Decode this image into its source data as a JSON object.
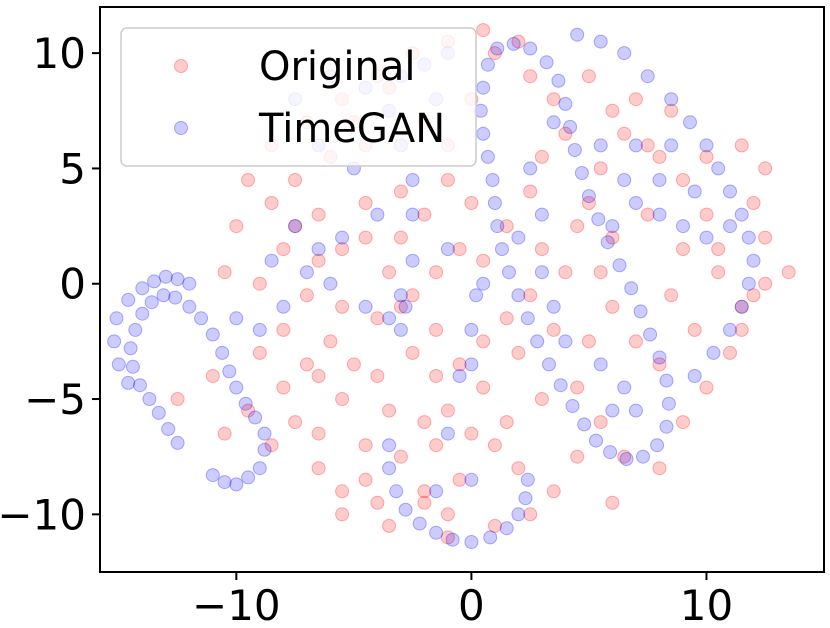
{
  "chart_data": {
    "type": "scatter",
    "title": "",
    "xlabel": "",
    "ylabel": "",
    "xlim": [
      -15.8,
      15.0
    ],
    "ylim": [
      -12.5,
      12.0
    ],
    "grid": false,
    "legend": {
      "placement": "top-left"
    },
    "x_ticks": [
      {
        "value": -10,
        "label": "−10"
      },
      {
        "value": 0,
        "label": "0"
      },
      {
        "value": 10,
        "label": "10"
      }
    ],
    "y_ticks": [
      {
        "value": 10,
        "label": "10"
      },
      {
        "value": 5,
        "label": "5"
      },
      {
        "value": 0,
        "label": "0"
      },
      {
        "value": -5,
        "label": "−5"
      },
      {
        "value": -10,
        "label": "−10"
      }
    ],
    "series": [
      {
        "name": "Original",
        "color": "#ff0000",
        "opacity": 0.2,
        "points": [
          [
            -9.5,
            4.5
          ],
          [
            -8.5,
            3.5
          ],
          [
            -7.5,
            2.5
          ],
          [
            -6.5,
            3.0
          ],
          [
            -5.5,
            1.5
          ],
          [
            -4.5,
            2.0
          ],
          [
            -3.5,
            0.5
          ],
          [
            -6.5,
            1.0
          ],
          [
            -8.0,
            1.5
          ],
          [
            -9.0,
            0.0
          ],
          [
            -10.5,
            0.5
          ],
          [
            -7.0,
            -0.5
          ],
          [
            -5.5,
            -1.0
          ],
          [
            -4.0,
            -1.5
          ],
          [
            -3.0,
            -1.0
          ],
          [
            -6.0,
            -2.5
          ],
          [
            -5.0,
            -3.5
          ],
          [
            -4.0,
            -4.0
          ],
          [
            -2.5,
            -3.0
          ],
          [
            -1.5,
            -2.0
          ],
          [
            -0.5,
            -3.5
          ],
          [
            0.5,
            -4.5
          ],
          [
            -1.0,
            -5.5
          ],
          [
            -2.0,
            -6.0
          ],
          [
            -3.5,
            -5.5
          ],
          [
            -5.5,
            -5.0
          ],
          [
            -6.5,
            -6.5
          ],
          [
            -4.5,
            -7.0
          ],
          [
            -3.0,
            -7.5
          ],
          [
            -1.5,
            -7.0
          ],
          [
            0.0,
            -6.5
          ],
          [
            1.0,
            -7.0
          ],
          [
            -2.0,
            -9.0
          ],
          [
            -4.0,
            -9.5
          ],
          [
            -5.5,
            -9.0
          ],
          [
            -5.5,
            -10.0
          ],
          [
            -3.5,
            -10.5
          ],
          [
            -1.0,
            -11.0
          ],
          [
            1.0,
            -10.5
          ],
          [
            2.5,
            -10.0
          ],
          [
            3.5,
            -9.0
          ],
          [
            -12.5,
            -5.0
          ],
          [
            -11.0,
            -4.0
          ],
          [
            -10.5,
            -6.5
          ],
          [
            -9.5,
            -5.5
          ],
          [
            -8.5,
            -7.0
          ],
          [
            -7.5,
            -6.0
          ],
          [
            -3.0,
            4.0
          ],
          [
            -2.0,
            3.0
          ],
          [
            -1.0,
            4.5
          ],
          [
            0.0,
            3.5
          ],
          [
            -0.5,
            1.5
          ],
          [
            -1.5,
            0.5
          ],
          [
            -2.5,
            -0.5
          ],
          [
            0.5,
            1.0
          ],
          [
            1.5,
            2.5
          ],
          [
            2.5,
            4.0
          ],
          [
            3.0,
            5.5
          ],
          [
            4.0,
            6.5
          ],
          [
            3.5,
            8.0
          ],
          [
            2.5,
            9.0
          ],
          [
            1.0,
            10.0
          ],
          [
            2.0,
            10.5
          ],
          [
            0.5,
            11.0
          ],
          [
            -1.0,
            10.5
          ],
          [
            -2.5,
            10.0
          ],
          [
            -4.0,
            9.0
          ],
          [
            -5.5,
            8.0
          ],
          [
            -7.0,
            7.0
          ],
          [
            -8.5,
            6.0
          ],
          [
            -6.0,
            5.5
          ],
          [
            -4.5,
            6.0
          ],
          [
            -2.0,
            7.0
          ],
          [
            0.0,
            8.0
          ],
          [
            -1.0,
            6.0
          ],
          [
            5.0,
            3.5
          ],
          [
            6.0,
            2.0
          ],
          [
            7.5,
            3.0
          ],
          [
            9.0,
            1.5
          ],
          [
            10.5,
            0.5
          ],
          [
            11.5,
            -1.0
          ],
          [
            12.5,
            0.0
          ],
          [
            13.5,
            0.5
          ],
          [
            12.5,
            2.0
          ],
          [
            12.0,
            3.5
          ],
          [
            12.5,
            5.0
          ],
          [
            11.5,
            6.0
          ],
          [
            10.0,
            5.5
          ],
          [
            9.0,
            4.5
          ],
          [
            8.0,
            5.5
          ],
          [
            6.5,
            6.5
          ],
          [
            5.5,
            5.0
          ],
          [
            7.0,
            8.0
          ],
          [
            8.5,
            7.5
          ],
          [
            10.0,
            3.0
          ],
          [
            11.0,
            -3.0
          ],
          [
            10.0,
            -4.5
          ],
          [
            9.0,
            -6.0
          ],
          [
            8.0,
            -8.0
          ],
          [
            6.5,
            -7.5
          ],
          [
            5.5,
            -6.0
          ],
          [
            4.5,
            -4.5
          ],
          [
            5.0,
            -2.5
          ],
          [
            6.0,
            -1.0
          ],
          [
            7.0,
            -2.5
          ],
          [
            8.0,
            -3.5
          ],
          [
            9.5,
            -2.0
          ],
          [
            3.5,
            -2.0
          ],
          [
            2.5,
            -0.5
          ],
          [
            4.0,
            0.5
          ],
          [
            1.5,
            -1.5
          ],
          [
            2.0,
            -3.0
          ],
          [
            3.0,
            -5.0
          ],
          [
            1.5,
            -6.0
          ],
          [
            4.5,
            -7.5
          ],
          [
            6.0,
            -9.5
          ],
          [
            11.5,
            -2.0
          ],
          [
            12.0,
            -0.5
          ],
          [
            10.5,
            1.5
          ],
          [
            8.5,
            -0.5
          ],
          [
            -8.0,
            -2.0
          ],
          [
            -9.0,
            -3.0
          ],
          [
            -7.0,
            -3.5
          ],
          [
            -4.5,
            3.5
          ],
          [
            -3.0,
            2.0
          ],
          [
            -1.5,
            -4.0
          ],
          [
            0.5,
            -2.5
          ],
          [
            -0.5,
            -8.5
          ],
          [
            2.0,
            -8.0
          ],
          [
            -6.5,
            -8.0
          ],
          [
            -10.0,
            2.5
          ],
          [
            -7.5,
            4.5
          ],
          [
            -5.0,
            7.0
          ],
          [
            -3.5,
            8.5
          ],
          [
            5.0,
            9.0
          ],
          [
            6.0,
            7.5
          ],
          [
            7.5,
            6.0
          ],
          [
            -2.0,
            -9.5
          ],
          [
            -1.0,
            -10.0
          ],
          [
            -4.5,
            -8.5
          ],
          [
            -8.0,
            -4.5
          ],
          [
            -6.5,
            -4.0
          ],
          [
            3.0,
            1.5
          ],
          [
            4.5,
            2.5
          ],
          [
            5.5,
            0.5
          ]
        ]
      },
      {
        "name": "TimeGAN",
        "color": "#0000ff",
        "opacity": 0.2,
        "points": [
          [
            -11.0,
            -8.3
          ],
          [
            -10.5,
            -8.6
          ],
          [
            -10.0,
            -8.7
          ],
          [
            -9.5,
            -8.4
          ],
          [
            -9.0,
            -8.0
          ],
          [
            -8.8,
            -7.2
          ],
          [
            -8.8,
            -6.5
          ],
          [
            -9.2,
            -5.8
          ],
          [
            -9.6,
            -5.2
          ],
          [
            -10.0,
            -4.5
          ],
          [
            -10.3,
            -3.8
          ],
          [
            -10.6,
            -3.0
          ],
          [
            -11.0,
            -2.2
          ],
          [
            -11.5,
            -1.5
          ],
          [
            -12.0,
            -1.0
          ],
          [
            -12.6,
            -0.6
          ],
          [
            -13.1,
            -0.5
          ],
          [
            -13.6,
            -0.8
          ],
          [
            -14.0,
            -1.3
          ],
          [
            -14.3,
            -2.0
          ],
          [
            -14.5,
            -2.8
          ],
          [
            -14.4,
            -3.6
          ],
          [
            -14.1,
            -4.4
          ],
          [
            -13.7,
            -5.0
          ],
          [
            -13.3,
            -5.6
          ],
          [
            -12.9,
            -6.3
          ],
          [
            -12.5,
            -6.9
          ],
          [
            -12.0,
            0.0
          ],
          [
            -12.5,
            0.2
          ],
          [
            -13.0,
            0.3
          ],
          [
            -13.5,
            0.1
          ],
          [
            -14.0,
            -0.2
          ],
          [
            -14.6,
            -0.7
          ],
          [
            -15.1,
            -1.5
          ],
          [
            -15.2,
            -2.5
          ],
          [
            -15.0,
            -3.5
          ],
          [
            -14.6,
            -4.3
          ],
          [
            -10.0,
            -1.5
          ],
          [
            -9.0,
            -2.0
          ],
          [
            -8.0,
            -1.0
          ],
          [
            -7.0,
            0.5
          ],
          [
            -6.5,
            1.5
          ],
          [
            -8.5,
            1.0
          ],
          [
            -7.5,
            2.5
          ],
          [
            -4.5,
            -1.0
          ],
          [
            -3.5,
            -1.5
          ],
          [
            -3.0,
            -0.5
          ],
          [
            -2.5,
            1.0
          ],
          [
            -2.5,
            3.0
          ],
          [
            -2.5,
            4.5
          ],
          [
            -3.0,
            6.0
          ],
          [
            -3.5,
            7.5
          ],
          [
            -4.5,
            8.5
          ],
          [
            -6.0,
            9.0
          ],
          [
            -7.5,
            8.0
          ],
          [
            -3.0,
            -2.0
          ],
          [
            -2.8,
            -1.0
          ],
          [
            0.0,
            -2.0
          ],
          [
            0.0,
            -3.5
          ],
          [
            0.2,
            -0.5
          ],
          [
            -3.5,
            -7.0
          ],
          [
            -3.5,
            -8.0
          ],
          [
            -3.2,
            -9.0
          ],
          [
            -2.8,
            -9.8
          ],
          [
            -2.2,
            -10.4
          ],
          [
            -1.5,
            -10.8
          ],
          [
            -0.8,
            -11.1
          ],
          [
            0.0,
            -11.2
          ],
          [
            0.8,
            -11.0
          ],
          [
            1.5,
            -10.6
          ],
          [
            2.0,
            -10.0
          ],
          [
            2.3,
            -9.3
          ],
          [
            2.4,
            -8.5
          ],
          [
            0.7,
            9.5
          ],
          [
            0.5,
            8.5
          ],
          [
            0.4,
            7.5
          ],
          [
            0.5,
            6.5
          ],
          [
            0.7,
            5.5
          ],
          [
            0.9,
            4.5
          ],
          [
            1.0,
            3.5
          ],
          [
            1.1,
            2.5
          ],
          [
            1.3,
            1.5
          ],
          [
            1.6,
            0.5
          ],
          [
            2.0,
            -0.5
          ],
          [
            2.4,
            -1.5
          ],
          [
            2.8,
            -2.5
          ],
          [
            3.3,
            -3.5
          ],
          [
            3.8,
            -4.4
          ],
          [
            4.3,
            -5.3
          ],
          [
            4.8,
            -6.1
          ],
          [
            5.3,
            -6.8
          ],
          [
            5.9,
            -7.3
          ],
          [
            6.6,
            -7.6
          ],
          [
            7.3,
            -7.5
          ],
          [
            7.9,
            -7.0
          ],
          [
            8.3,
            -6.2
          ],
          [
            8.4,
            -5.2
          ],
          [
            8.3,
            -4.2
          ],
          [
            8.0,
            -3.2
          ],
          [
            7.6,
            -2.2
          ],
          [
            7.2,
            -1.2
          ],
          [
            6.8,
            -0.2
          ],
          [
            6.3,
            0.8
          ],
          [
            5.8,
            1.8
          ],
          [
            5.4,
            2.8
          ],
          [
            5.0,
            3.8
          ],
          [
            4.7,
            4.8
          ],
          [
            4.4,
            5.8
          ],
          [
            4.2,
            6.8
          ],
          [
            4.0,
            7.8
          ],
          [
            3.7,
            8.8
          ],
          [
            3.2,
            9.6
          ],
          [
            2.5,
            10.2
          ],
          [
            1.8,
            10.4
          ],
          [
            1.1,
            10.2
          ],
          [
            4.5,
            10.8
          ],
          [
            5.5,
            10.5
          ],
          [
            6.5,
            10.0
          ],
          [
            7.5,
            9.0
          ],
          [
            8.5,
            8.0
          ],
          [
            9.3,
            7.0
          ],
          [
            10.0,
            6.0
          ],
          [
            10.5,
            5.0
          ],
          [
            11.0,
            4.0
          ],
          [
            11.5,
            3.0
          ],
          [
            11.8,
            2.0
          ],
          [
            12.0,
            1.0
          ],
          [
            11.8,
            0.0
          ],
          [
            11.5,
            -1.0
          ],
          [
            11.0,
            -2.0
          ],
          [
            10.3,
            -3.0
          ],
          [
            9.5,
            -4.0
          ],
          [
            6.0,
            2.5
          ],
          [
            7.0,
            3.5
          ],
          [
            8.0,
            3.0
          ],
          [
            9.0,
            2.5
          ],
          [
            10.0,
            2.0
          ],
          [
            11.0,
            2.5
          ],
          [
            6.5,
            4.5
          ],
          [
            8.0,
            4.5
          ],
          [
            9.5,
            4.0
          ],
          [
            7.0,
            6.0
          ],
          [
            8.5,
            6.0
          ],
          [
            5.5,
            6.0
          ],
          [
            2.0,
            2.0
          ],
          [
            3.0,
            3.0
          ],
          [
            2.5,
            5.0
          ],
          [
            3.5,
            7.0
          ],
          [
            3.0,
            0.5
          ],
          [
            3.5,
            -1.0
          ],
          [
            4.0,
            -2.5
          ],
          [
            5.5,
            -3.5
          ],
          [
            6.5,
            -4.5
          ],
          [
            7.0,
            -5.5
          ],
          [
            6.0,
            -5.5
          ],
          [
            -1.0,
            10.0
          ],
          [
            -2.0,
            9.5
          ],
          [
            -1.5,
            8.0
          ],
          [
            -3.0,
            9.0
          ],
          [
            -6.5,
            6.0
          ],
          [
            -5.0,
            5.0
          ],
          [
            -4.0,
            3.0
          ],
          [
            -5.5,
            2.0
          ],
          [
            -6.0,
            0.0
          ],
          [
            -1.0,
            1.5
          ],
          [
            0.5,
            0.0
          ],
          [
            -0.5,
            -4.0
          ],
          [
            -1.0,
            -6.5
          ],
          [
            0.0,
            -8.5
          ],
          [
            -1.5,
            -9.0
          ]
        ]
      }
    ]
  }
}
